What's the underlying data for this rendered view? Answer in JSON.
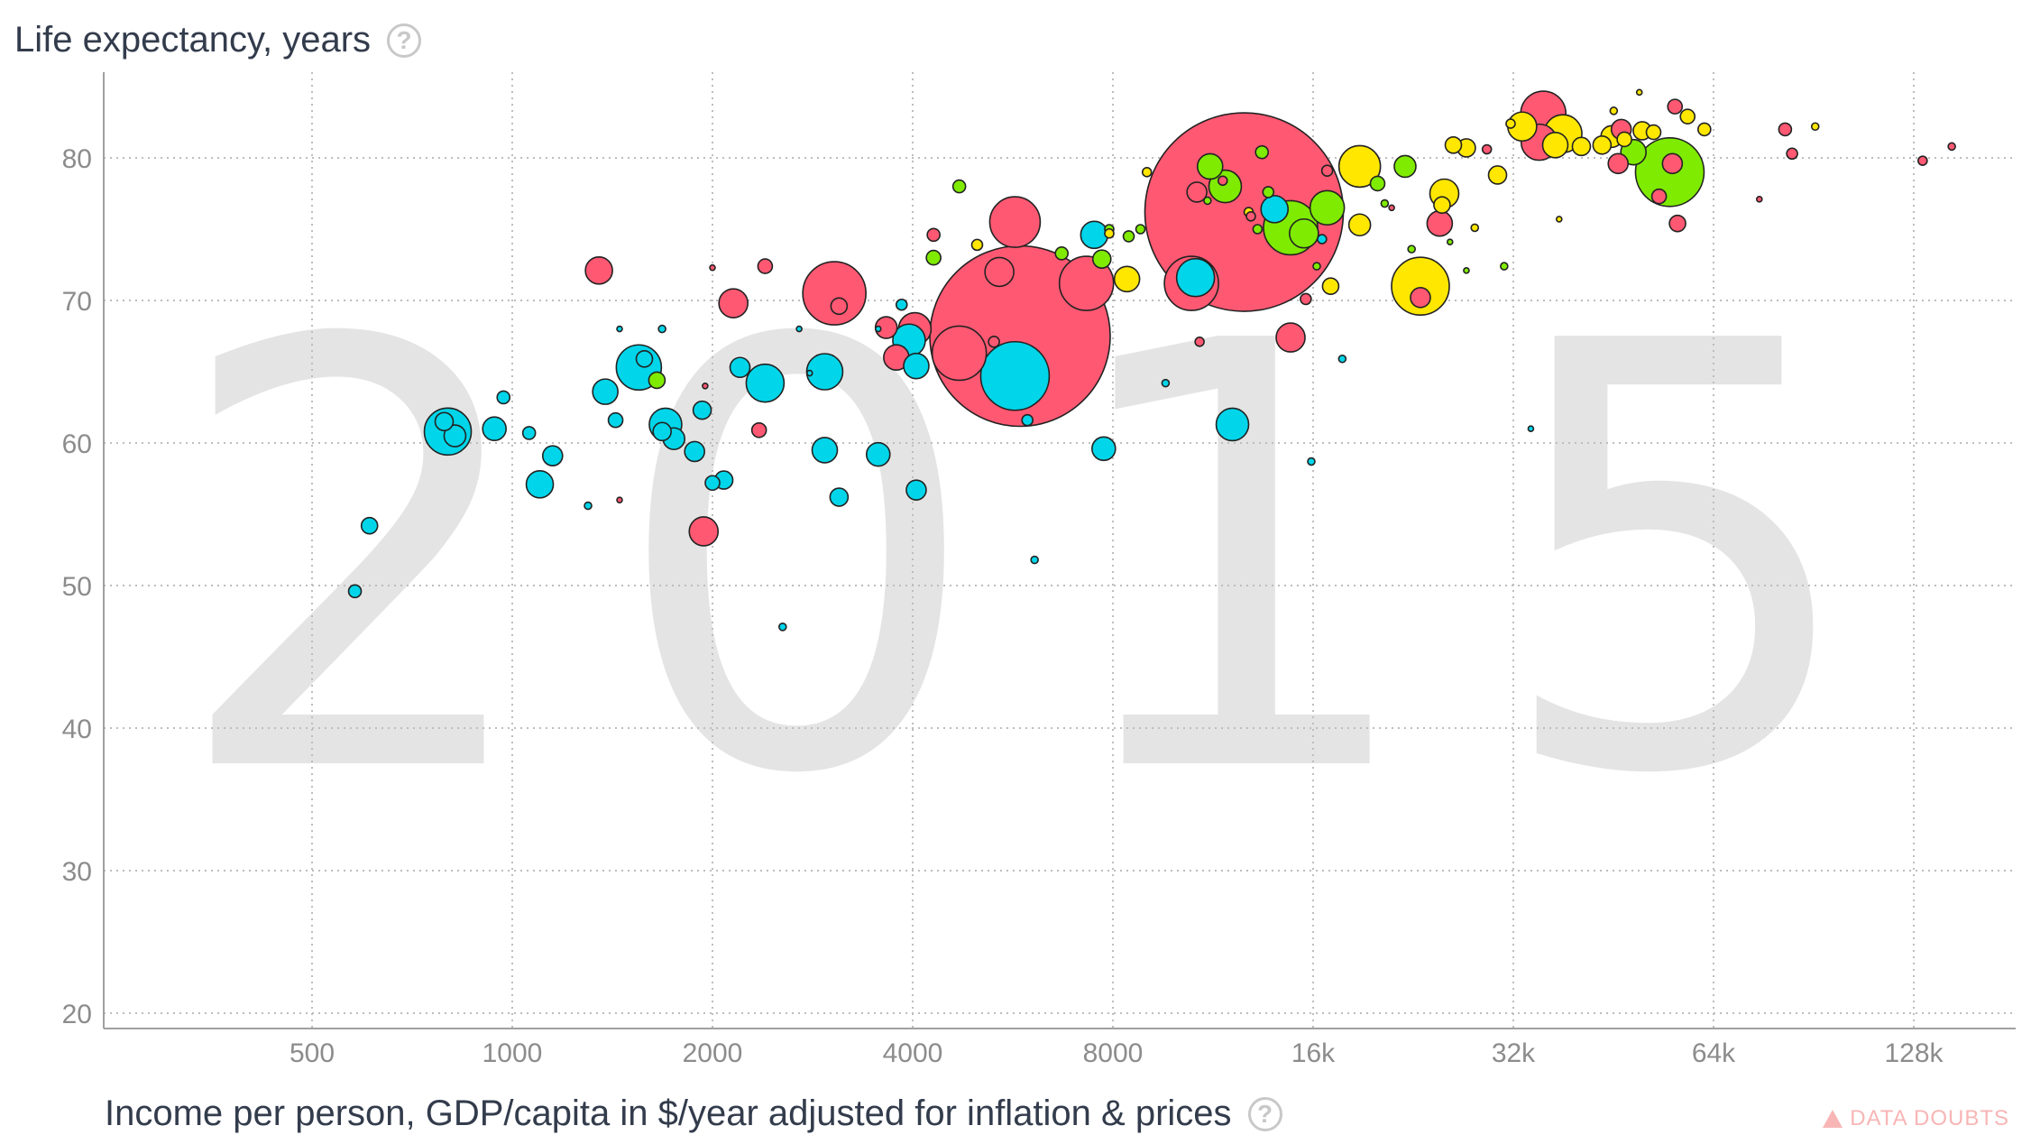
{
  "y_axis_title": "Life expectancy, years",
  "x_axis_title": "Income per person, GDP/capita in $/year adjusted for inflation & prices",
  "help_glyph": "?",
  "data_doubts_label": "DATA DOUBTS",
  "icons": [
    "help-circle-icon",
    "warning-triangle-icon"
  ],
  "colors": {
    "africa": "#00d5e9",
    "americas": "#7feb00",
    "asia": "#ff5872",
    "europe": "#ffe700",
    "year_watermark": "#e4e4e4",
    "grid": "#bdbdbd",
    "axis_text": "#8c8c8c"
  },
  "chart_data": {
    "type": "scatter",
    "year": "2015",
    "title": "",
    "xlabel": "Income per person, GDP/capita in $/year adjusted for inflation & prices",
    "ylabel": "Life expectancy, years",
    "x_scale": "log2",
    "x_ticks": [
      500,
      1000,
      2000,
      4000,
      8000,
      16000,
      32000,
      64000,
      128000
    ],
    "x_tick_labels": [
      "500",
      "1000",
      "2000",
      "4000",
      "8000",
      "16k",
      "32k",
      "64k",
      "128k"
    ],
    "y_ticks": [
      20,
      30,
      40,
      50,
      60,
      70,
      80
    ],
    "x_range": [
      300,
      180000
    ],
    "y_range": [
      19,
      85
    ],
    "grid": true,
    "bubble_size": "population",
    "points": [
      {
        "x": 5800,
        "y": 67.5,
        "r": 100,
        "c": "asia"
      },
      {
        "x": 12600,
        "y": 76.2,
        "r": 110,
        "c": "asia"
      },
      {
        "x": 5700,
        "y": 64.7,
        "r": 38,
        "c": "africa"
      },
      {
        "x": 4700,
        "y": 66.3,
        "r": 30,
        "c": "asia"
      },
      {
        "x": 3050,
        "y": 70.5,
        "r": 35,
        "c": "asia"
      },
      {
        "x": 5700,
        "y": 75.5,
        "r": 28,
        "c": "asia"
      },
      {
        "x": 7300,
        "y": 71.2,
        "r": 30,
        "c": "asia"
      },
      {
        "x": 5400,
        "y": 72.0,
        "r": 16,
        "c": "asia"
      },
      {
        "x": 4030,
        "y": 68.0,
        "r": 18,
        "c": "asia"
      },
      {
        "x": 3950,
        "y": 67.2,
        "r": 18,
        "c": "africa"
      },
      {
        "x": 3780,
        "y": 66.0,
        "r": 14,
        "c": "asia"
      },
      {
        "x": 4050,
        "y": 65.4,
        "r": 14,
        "c": "africa"
      },
      {
        "x": 2150,
        "y": 69.8,
        "r": 16,
        "c": "asia"
      },
      {
        "x": 3650,
        "y": 68.1,
        "r": 12,
        "c": "asia"
      },
      {
        "x": 3100,
        "y": 69.6,
        "r": 9,
        "c": "asia"
      },
      {
        "x": 1350,
        "y": 72.1,
        "r": 15,
        "c": "asia"
      },
      {
        "x": 1550,
        "y": 65.3,
        "r": 25,
        "c": "africa"
      },
      {
        "x": 800,
        "y": 60.8,
        "r": 26,
        "c": "africa"
      },
      {
        "x": 790,
        "y": 61.5,
        "r": 10,
        "c": "africa"
      },
      {
        "x": 820,
        "y": 60.5,
        "r": 12,
        "c": "africa"
      },
      {
        "x": 940,
        "y": 61.0,
        "r": 13,
        "c": "africa"
      },
      {
        "x": 1380,
        "y": 63.6,
        "r": 14,
        "c": "africa"
      },
      {
        "x": 1700,
        "y": 61.3,
        "r": 18,
        "c": "africa"
      },
      {
        "x": 1750,
        "y": 60.3,
        "r": 12,
        "c": "africa"
      },
      {
        "x": 1680,
        "y": 60.8,
        "r": 10,
        "c": "africa"
      },
      {
        "x": 1880,
        "y": 59.4,
        "r": 11,
        "c": "africa"
      },
      {
        "x": 1930,
        "y": 62.3,
        "r": 10,
        "c": "africa"
      },
      {
        "x": 1150,
        "y": 59.1,
        "r": 11,
        "c": "africa"
      },
      {
        "x": 1100,
        "y": 57.1,
        "r": 15,
        "c": "africa"
      },
      {
        "x": 610,
        "y": 54.2,
        "r": 9,
        "c": "africa"
      },
      {
        "x": 580,
        "y": 49.6,
        "r": 7,
        "c": "africa"
      },
      {
        "x": 970,
        "y": 63.2,
        "r": 7,
        "c": "africa"
      },
      {
        "x": 1060,
        "y": 60.7,
        "r": 7,
        "c": "africa"
      },
      {
        "x": 1430,
        "y": 61.6,
        "r": 8,
        "c": "africa"
      },
      {
        "x": 1580,
        "y": 65.9,
        "r": 9,
        "c": "africa"
      },
      {
        "x": 1940,
        "y": 53.8,
        "r": 16,
        "c": "asia"
      },
      {
        "x": 2000,
        "y": 57.2,
        "r": 8,
        "c": "africa"
      },
      {
        "x": 2080,
        "y": 57.4,
        "r": 10,
        "c": "africa"
      },
      {
        "x": 2400,
        "y": 64.2,
        "r": 21,
        "c": "africa"
      },
      {
        "x": 2950,
        "y": 65.0,
        "r": 20,
        "c": "africa"
      },
      {
        "x": 2950,
        "y": 59.5,
        "r": 14,
        "c": "africa"
      },
      {
        "x": 2200,
        "y": 65.3,
        "r": 11,
        "c": "africa"
      },
      {
        "x": 3100,
        "y": 56.2,
        "r": 10,
        "c": "africa"
      },
      {
        "x": 3550,
        "y": 59.2,
        "r": 13,
        "c": "africa"
      },
      {
        "x": 4050,
        "y": 56.7,
        "r": 11,
        "c": "africa"
      },
      {
        "x": 2350,
        "y": 60.9,
        "r": 8,
        "c": "asia"
      },
      {
        "x": 2400,
        "y": 72.4,
        "r": 8,
        "c": "asia"
      },
      {
        "x": 1650,
        "y": 64.4,
        "r": 9,
        "c": "americas"
      },
      {
        "x": 4700,
        "y": 78.0,
        "r": 7,
        "c": "americas"
      },
      {
        "x": 4300,
        "y": 74.6,
        "r": 7,
        "c": "asia"
      },
      {
        "x": 4300,
        "y": 73.0,
        "r": 8,
        "c": "americas"
      },
      {
        "x": 5000,
        "y": 73.9,
        "r": 6,
        "c": "europe"
      },
      {
        "x": 5300,
        "y": 67.1,
        "r": 6,
        "c": "asia"
      },
      {
        "x": 5950,
        "y": 61.6,
        "r": 6,
        "c": "africa"
      },
      {
        "x": 7500,
        "y": 74.6,
        "r": 15,
        "c": "africa"
      },
      {
        "x": 7700,
        "y": 72.9,
        "r": 10,
        "c": "americas"
      },
      {
        "x": 6700,
        "y": 73.3,
        "r": 7,
        "c": "americas"
      },
      {
        "x": 7900,
        "y": 75.0,
        "r": 5,
        "c": "americas"
      },
      {
        "x": 7900,
        "y": 74.7,
        "r": 5,
        "c": "europe"
      },
      {
        "x": 8450,
        "y": 74.5,
        "r": 6,
        "c": "americas"
      },
      {
        "x": 8800,
        "y": 75.0,
        "r": 5,
        "c": "americas"
      },
      {
        "x": 8400,
        "y": 71.5,
        "r": 14,
        "c": "europe"
      },
      {
        "x": 7750,
        "y": 59.6,
        "r": 13,
        "c": "africa"
      },
      {
        "x": 10500,
        "y": 71.2,
        "r": 30,
        "c": "asia"
      },
      {
        "x": 10650,
        "y": 71.6,
        "r": 21,
        "c": "africa"
      },
      {
        "x": 12100,
        "y": 61.3,
        "r": 18,
        "c": "africa"
      },
      {
        "x": 10700,
        "y": 77.6,
        "r": 11,
        "c": "asia"
      },
      {
        "x": 11200,
        "y": 79.4,
        "r": 14,
        "c": "americas"
      },
      {
        "x": 11800,
        "y": 78.0,
        "r": 18,
        "c": "americas"
      },
      {
        "x": 14000,
        "y": 76.4,
        "r": 15,
        "c": "africa"
      },
      {
        "x": 14800,
        "y": 75.1,
        "r": 30,
        "c": "americas"
      },
      {
        "x": 15500,
        "y": 74.7,
        "r": 16,
        "c": "americas"
      },
      {
        "x": 16800,
        "y": 76.5,
        "r": 19,
        "c": "americas"
      },
      {
        "x": 14800,
        "y": 67.4,
        "r": 16,
        "c": "asia"
      },
      {
        "x": 16800,
        "y": 79.1,
        "r": 6,
        "c": "asia"
      },
      {
        "x": 18800,
        "y": 79.4,
        "r": 23,
        "c": "europe"
      },
      {
        "x": 18800,
        "y": 75.3,
        "r": 12,
        "c": "europe"
      },
      {
        "x": 17000,
        "y": 71.0,
        "r": 9,
        "c": "europe"
      },
      {
        "x": 20000,
        "y": 78.2,
        "r": 8,
        "c": "americas"
      },
      {
        "x": 22000,
        "y": 79.4,
        "r": 12,
        "c": "americas"
      },
      {
        "x": 23200,
        "y": 71.0,
        "r": 32,
        "c": "europe"
      },
      {
        "x": 23200,
        "y": 70.2,
        "r": 11,
        "c": "asia"
      },
      {
        "x": 25200,
        "y": 77.5,
        "r": 16,
        "c": "europe"
      },
      {
        "x": 25000,
        "y": 76.7,
        "r": 9,
        "c": "europe"
      },
      {
        "x": 24800,
        "y": 75.4,
        "r": 14,
        "c": "asia"
      },
      {
        "x": 26000,
        "y": 80.9,
        "r": 9,
        "c": "europe"
      },
      {
        "x": 27200,
        "y": 80.7,
        "r": 10,
        "c": "europe"
      },
      {
        "x": 30300,
        "y": 78.8,
        "r": 10,
        "c": "europe"
      },
      {
        "x": 35500,
        "y": 83.1,
        "r": 25,
        "c": "asia"
      },
      {
        "x": 35000,
        "y": 81.1,
        "r": 20,
        "c": "asia"
      },
      {
        "x": 33000,
        "y": 82.2,
        "r": 16,
        "c": "europe"
      },
      {
        "x": 38000,
        "y": 81.7,
        "r": 21,
        "c": "europe"
      },
      {
        "x": 37000,
        "y": 80.9,
        "r": 14,
        "c": "europe"
      },
      {
        "x": 40500,
        "y": 80.8,
        "r": 10,
        "c": "europe"
      },
      {
        "x": 43500,
        "y": 80.9,
        "r": 10,
        "c": "europe"
      },
      {
        "x": 45000,
        "y": 81.5,
        "r": 12,
        "c": "europe"
      },
      {
        "x": 46500,
        "y": 82.0,
        "r": 11,
        "c": "asia"
      },
      {
        "x": 46000,
        "y": 79.6,
        "r": 11,
        "c": "asia"
      },
      {
        "x": 47000,
        "y": 81.3,
        "r": 8,
        "c": "europe"
      },
      {
        "x": 48500,
        "y": 80.4,
        "r": 14,
        "c": "americas"
      },
      {
        "x": 50000,
        "y": 81.9,
        "r": 10,
        "c": "europe"
      },
      {
        "x": 52000,
        "y": 81.8,
        "r": 8,
        "c": "europe"
      },
      {
        "x": 53000,
        "y": 77.3,
        "r": 8,
        "c": "asia"
      },
      {
        "x": 55000,
        "y": 79.0,
        "r": 38,
        "c": "americas"
      },
      {
        "x": 55500,
        "y": 79.6,
        "r": 11,
        "c": "asia"
      },
      {
        "x": 56000,
        "y": 83.6,
        "r": 8,
        "c": "asia"
      },
      {
        "x": 58500,
        "y": 82.9,
        "r": 8,
        "c": "europe"
      },
      {
        "x": 62000,
        "y": 82.0,
        "r": 7,
        "c": "europe"
      },
      {
        "x": 56500,
        "y": 75.4,
        "r": 9,
        "c": "asia"
      },
      {
        "x": 82000,
        "y": 82.0,
        "r": 7,
        "c": "asia"
      },
      {
        "x": 84000,
        "y": 80.3,
        "r": 6,
        "c": "asia"
      },
      {
        "x": 91000,
        "y": 82.2,
        "r": 4,
        "c": "europe"
      },
      {
        "x": 75000,
        "y": 77.1,
        "r": 3,
        "c": "asia"
      },
      {
        "x": 132000,
        "y": 79.8,
        "r": 5,
        "c": "asia"
      },
      {
        "x": 146000,
        "y": 80.8,
        "r": 4,
        "c": "asia"
      },
      {
        "x": 31000,
        "y": 72.4,
        "r": 4,
        "c": "americas"
      },
      {
        "x": 34000,
        "y": 61.0,
        "r": 3,
        "c": "africa"
      },
      {
        "x": 17700,
        "y": 65.9,
        "r": 4,
        "c": "africa"
      },
      {
        "x": 15900,
        "y": 58.7,
        "r": 4,
        "c": "africa"
      },
      {
        "x": 9600,
        "y": 64.2,
        "r": 4,
        "c": "africa"
      },
      {
        "x": 6100,
        "y": 51.8,
        "r": 4,
        "c": "africa"
      },
      {
        "x": 2550,
        "y": 47.1,
        "r": 4,
        "c": "africa"
      },
      {
        "x": 1300,
        "y": 55.6,
        "r": 4,
        "c": "africa"
      },
      {
        "x": 1450,
        "y": 68.0,
        "r": 3,
        "c": "africa"
      },
      {
        "x": 1680,
        "y": 68.0,
        "r": 4,
        "c": "africa"
      },
      {
        "x": 2000,
        "y": 72.3,
        "r": 3,
        "c": "asia"
      },
      {
        "x": 1950,
        "y": 64.0,
        "r": 3,
        "c": "asia"
      },
      {
        "x": 3550,
        "y": 68.0,
        "r": 3,
        "c": "africa"
      },
      {
        "x": 3850,
        "y": 69.7,
        "r": 6,
        "c": "africa"
      },
      {
        "x": 2800,
        "y": 64.9,
        "r": 3,
        "c": "africa"
      },
      {
        "x": 2700,
        "y": 68.0,
        "r": 3,
        "c": "africa"
      },
      {
        "x": 13400,
        "y": 80.4,
        "r": 7,
        "c": "americas"
      },
      {
        "x": 13700,
        "y": 77.6,
        "r": 6,
        "c": "americas"
      },
      {
        "x": 12800,
        "y": 76.2,
        "r": 5,
        "c": "europe"
      },
      {
        "x": 12900,
        "y": 75.9,
        "r": 5,
        "c": "asia"
      },
      {
        "x": 13200,
        "y": 75.0,
        "r": 5,
        "c": "americas"
      },
      {
        "x": 9000,
        "y": 79.0,
        "r": 5,
        "c": "europe"
      },
      {
        "x": 11100,
        "y": 77.0,
        "r": 4,
        "c": "americas"
      },
      {
        "x": 11700,
        "y": 78.4,
        "r": 5,
        "c": "asia"
      },
      {
        "x": 16500,
        "y": 74.3,
        "r": 5,
        "c": "africa"
      },
      {
        "x": 16200,
        "y": 72.4,
        "r": 4,
        "c": "americas"
      },
      {
        "x": 20500,
        "y": 76.8,
        "r": 4,
        "c": "americas"
      },
      {
        "x": 21000,
        "y": 76.5,
        "r": 3,
        "c": "asia"
      },
      {
        "x": 22500,
        "y": 73.6,
        "r": 4,
        "c": "americas"
      },
      {
        "x": 25700,
        "y": 74.1,
        "r": 3,
        "c": "americas"
      },
      {
        "x": 28000,
        "y": 75.1,
        "r": 4,
        "c": "europe"
      },
      {
        "x": 27200,
        "y": 72.1,
        "r": 3,
        "c": "americas"
      },
      {
        "x": 29200,
        "y": 80.6,
        "r": 5,
        "c": "asia"
      },
      {
        "x": 31700,
        "y": 82.4,
        "r": 5,
        "c": "europe"
      },
      {
        "x": 37500,
        "y": 75.7,
        "r": 3,
        "c": "europe"
      },
      {
        "x": 45300,
        "y": 83.3,
        "r": 4,
        "c": "europe"
      },
      {
        "x": 49500,
        "y": 84.6,
        "r": 3,
        "c": "europe"
      },
      {
        "x": 15600,
        "y": 70.1,
        "r": 6,
        "c": "asia"
      },
      {
        "x": 10800,
        "y": 67.1,
        "r": 5,
        "c": "asia"
      },
      {
        "x": 1450,
        "y": 56.0,
        "r": 3,
        "c": "asia"
      }
    ]
  }
}
